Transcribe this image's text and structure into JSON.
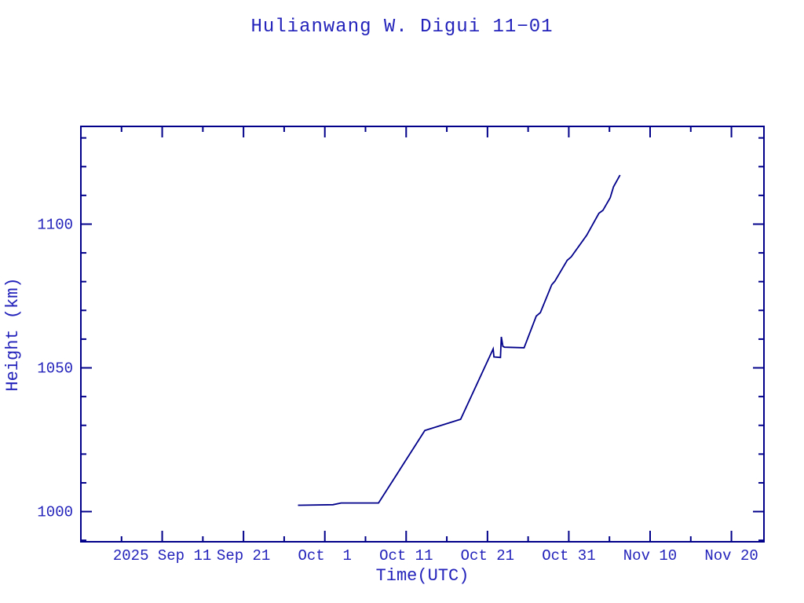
{
  "colors": {
    "background": "#ffffff",
    "text_blue": "#2323bb",
    "axis_navy": "#00008b",
    "line_navy": "#00008b"
  },
  "chart_data": {
    "type": "line",
    "title": "Hulianwang W. Digui 11−01",
    "xlabel": "Time(UTC)",
    "ylabel": "Height (km)",
    "x_unit": "days since 2025-09-01 00:00 UTC",
    "xlim": [
      0,
      84
    ],
    "ylim": [
      989.5,
      1134
    ],
    "grid": false,
    "legend": "none",
    "x_major_ticks": [
      {
        "t": 10,
        "label": "2025 Sep 11",
        "date": "2025-09-11"
      },
      {
        "t": 20,
        "label": "Sep 21",
        "date": "2025-09-21"
      },
      {
        "t": 30,
        "label": "Oct  1",
        "date": "2025-10-01"
      },
      {
        "t": 40,
        "label": "Oct 11",
        "date": "2025-10-11"
      },
      {
        "t": 50,
        "label": "Oct 21",
        "date": "2025-10-21"
      },
      {
        "t": 60,
        "label": "Oct 31",
        "date": "2025-10-31"
      },
      {
        "t": 70,
        "label": "Nov 10",
        "date": "2025-11-10"
      },
      {
        "t": 80,
        "label": "Nov 20",
        "date": "2025-11-20"
      }
    ],
    "x_minor_ticks": [
      5,
      15,
      25,
      35,
      45,
      55,
      65,
      75
    ],
    "y_major_ticks": [
      {
        "v": 1000,
        "label": "1000"
      },
      {
        "v": 1050,
        "label": "1050"
      },
      {
        "v": 1100,
        "label": "1100"
      }
    ],
    "y_minor_ticks": [
      990,
      1010,
      1020,
      1030,
      1040,
      1060,
      1070,
      1080,
      1090,
      1110,
      1120,
      1130
    ],
    "series": [
      {
        "name": "Height (km)",
        "points_t_h": [
          [
            26.7,
            1002.2
          ],
          [
            31.0,
            1002.4
          ],
          [
            32.0,
            1003.0
          ],
          [
            36.6,
            1003.0
          ],
          [
            42.3,
            1028.2
          ],
          [
            46.7,
            1032.1
          ],
          [
            50.7,
            1056.6
          ],
          [
            50.8,
            1053.8
          ],
          [
            51.6,
            1053.6
          ],
          [
            51.7,
            1060.8
          ],
          [
            51.9,
            1057.5
          ],
          [
            52.1,
            1057.2
          ],
          [
            54.5,
            1057.0
          ],
          [
            56.0,
            1068.0
          ],
          [
            56.5,
            1069.2
          ],
          [
            57.9,
            1078.9
          ],
          [
            58.3,
            1080.2
          ],
          [
            59.8,
            1087.4
          ],
          [
            60.3,
            1088.6
          ],
          [
            62.2,
            1096.1
          ],
          [
            63.7,
            1103.8
          ],
          [
            64.2,
            1104.8
          ],
          [
            65.1,
            1109.2
          ],
          [
            65.5,
            1113.0
          ],
          [
            66.3,
            1117.1
          ]
        ]
      }
    ]
  }
}
